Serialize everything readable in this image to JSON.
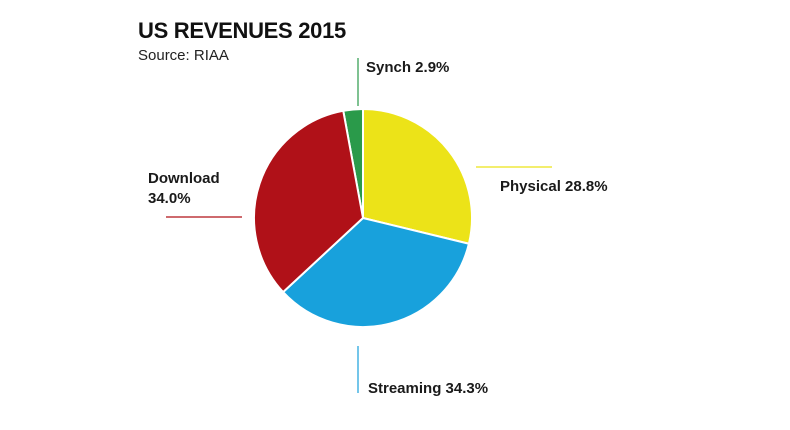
{
  "chart_data": {
    "type": "pie",
    "title": "US REVENUES 2015",
    "subtitle": "Source: RIAA",
    "slices": [
      {
        "name": "Synch",
        "value": 2.9,
        "label_text": "Synch 2.9%",
        "color": "#2a9a4a"
      },
      {
        "name": "Physical",
        "value": 28.8,
        "label_text": "Physical 28.8%",
        "color": "#ece318"
      },
      {
        "name": "Streaming",
        "value": 34.3,
        "label_text": "Streaming 34.3%",
        "color": "#18a1dc"
      },
      {
        "name": "Download",
        "value": 34.0,
        "label_text_lines": [
          "Download",
          "34.0%"
        ],
        "color": "#b01118"
      }
    ],
    "unit": "%",
    "legend": "none (labels beside slices)"
  }
}
